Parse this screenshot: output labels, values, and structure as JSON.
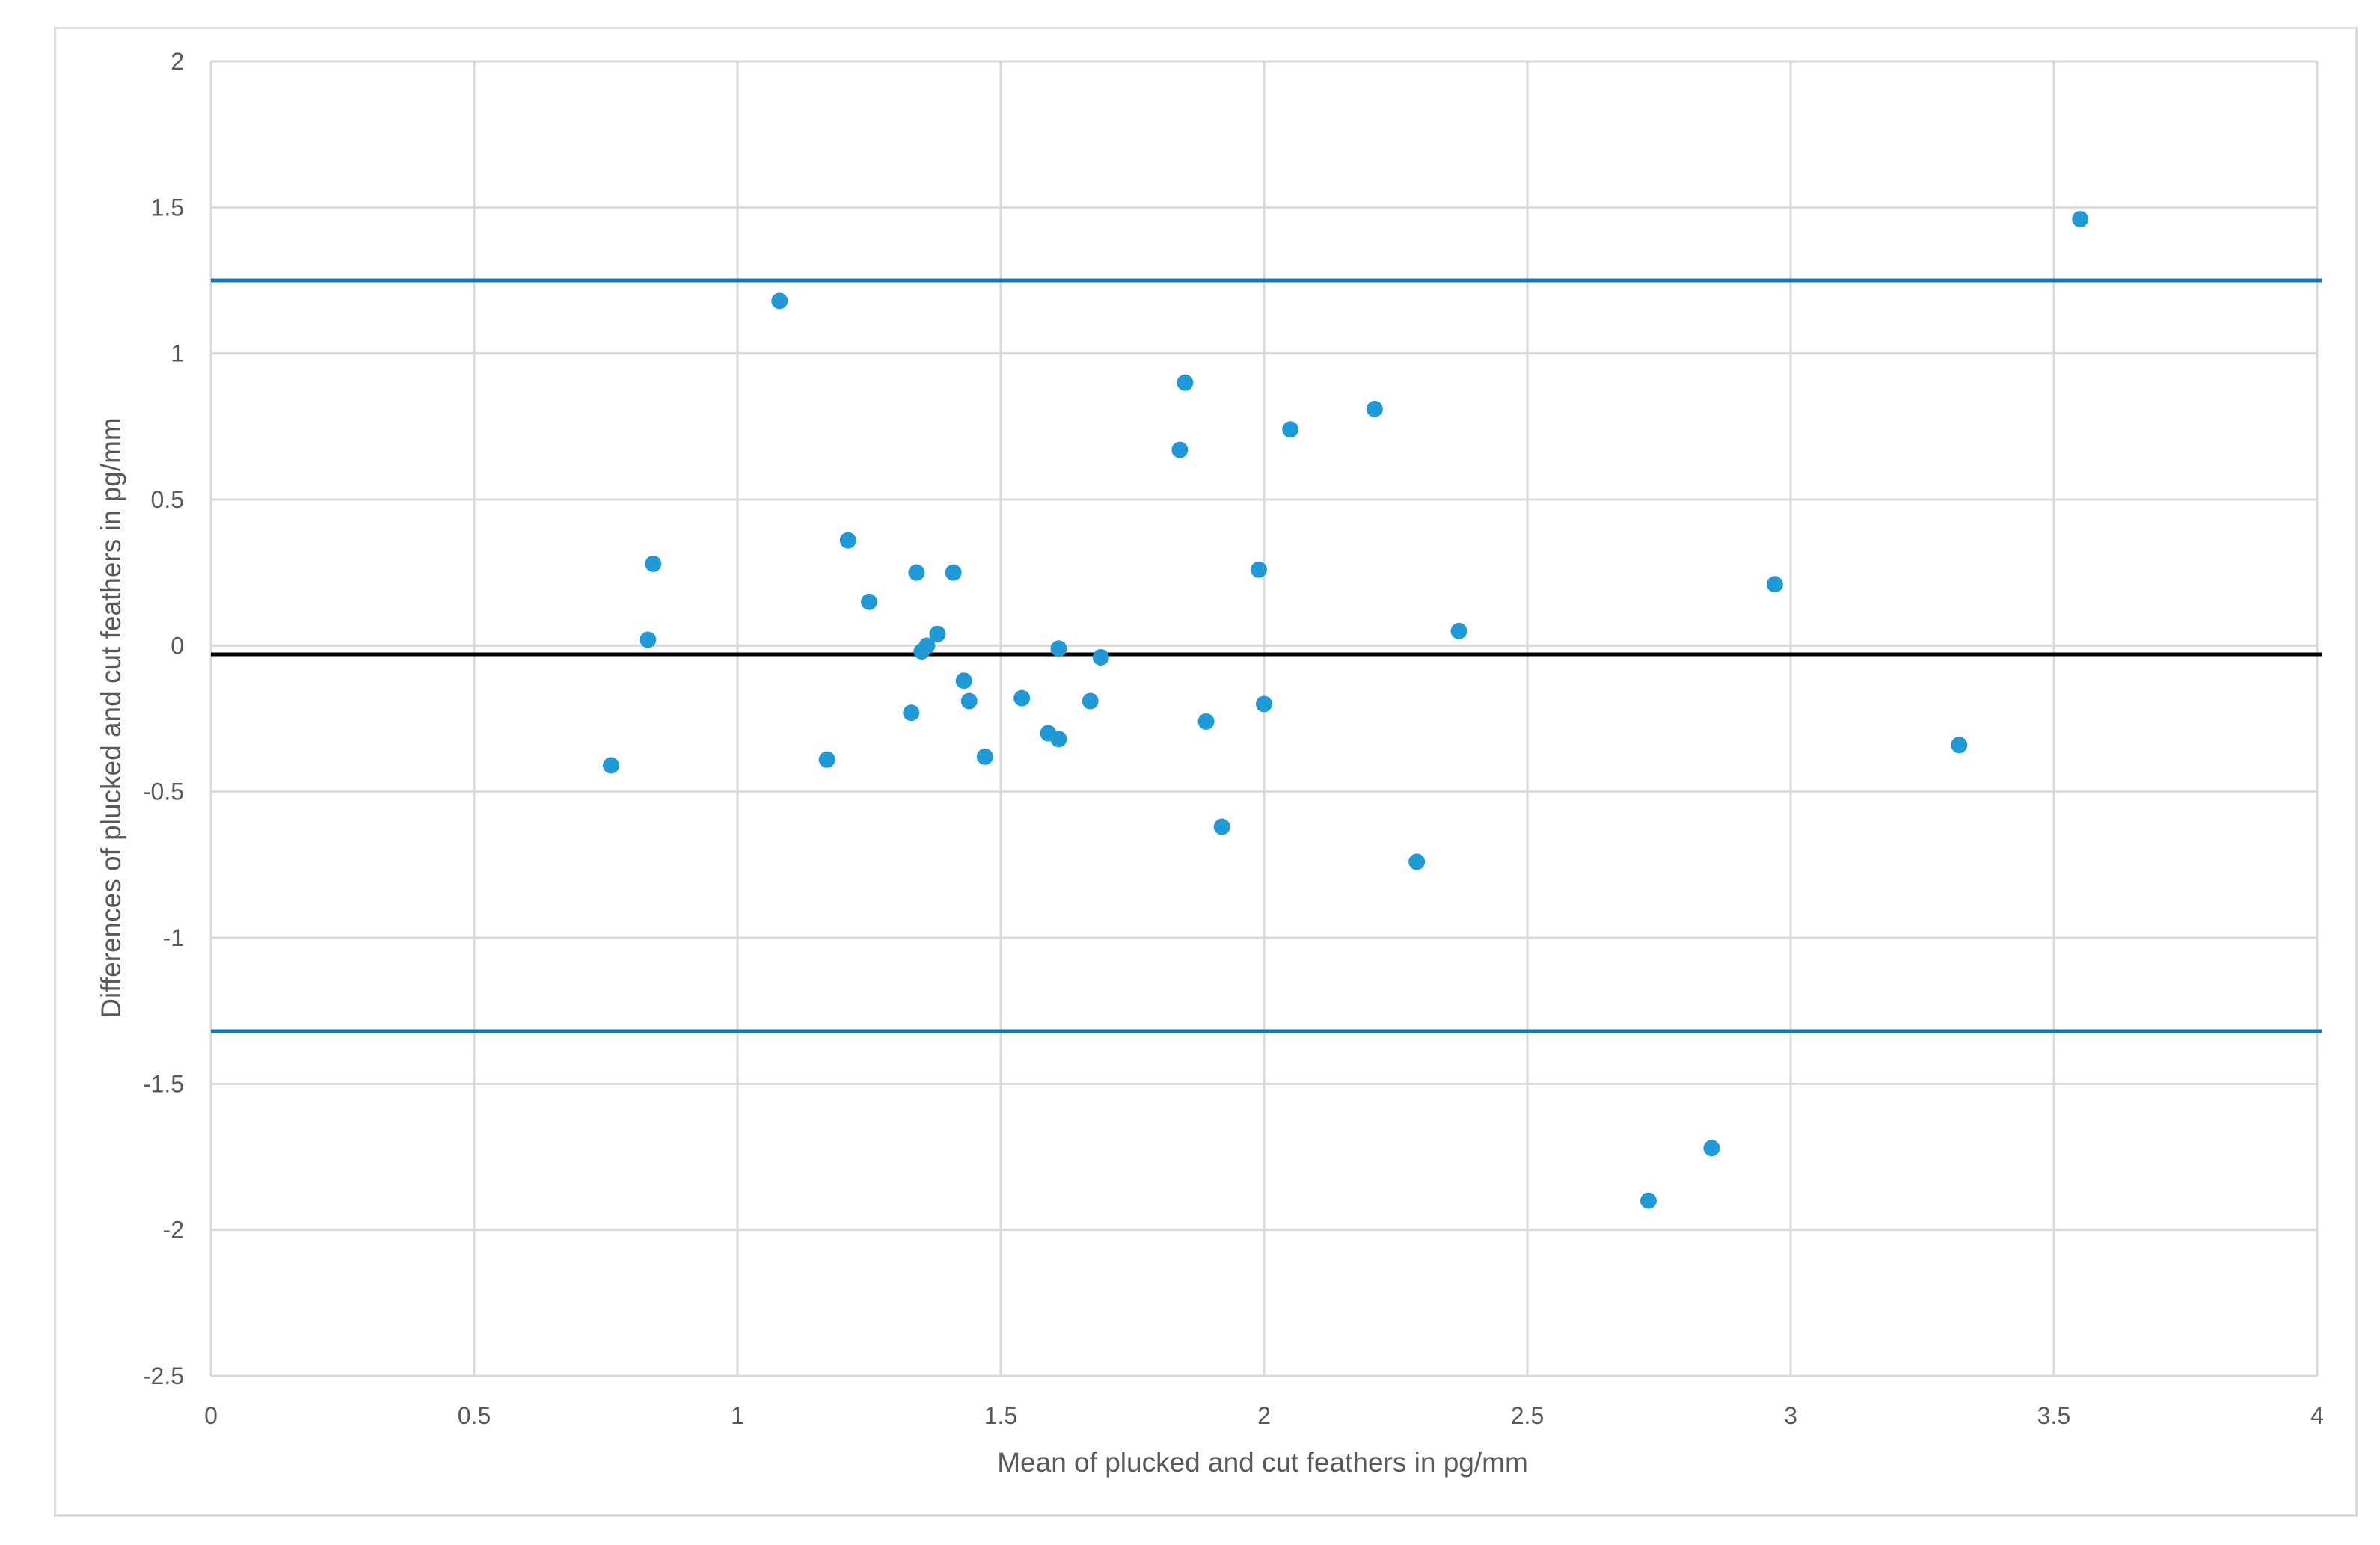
{
  "chart_data": {
    "type": "scatter",
    "title": "",
    "xlabel": "Mean of plucked and cut feathers in pg/mm",
    "ylabel": "Differences of plucked and cut feathers in pg/mm",
    "xlim": [
      0,
      4
    ],
    "ylim": [
      -2.5,
      2
    ],
    "x_ticks": [
      "0",
      "0.5",
      "1",
      "1.5",
      "2",
      "2.5",
      "3",
      "3.5",
      "4"
    ],
    "y_ticks": [
      "2",
      "1.5",
      "1",
      "0.5",
      "0",
      "-0.5",
      "-1",
      "-1.5",
      "-2",
      "-2.5"
    ],
    "grid": true,
    "legend": "none",
    "colors": {
      "points": "#1f9ad6",
      "limits": "#1777bb",
      "mean": "#000000",
      "grid": "#d9d9d9"
    },
    "reference_lines": [
      {
        "role": "upper-limit",
        "y": 1.25
      },
      {
        "role": "mean-difference",
        "y": -0.03
      },
      {
        "role": "lower-limit",
        "y": -1.32
      }
    ],
    "points": [
      [
        0.76,
        -0.41
      ],
      [
        0.83,
        0.02
      ],
      [
        0.84,
        0.28
      ],
      [
        1.08,
        1.18
      ],
      [
        1.17,
        -0.39
      ],
      [
        1.21,
        0.36
      ],
      [
        1.25,
        0.15
      ],
      [
        1.33,
        -0.23
      ],
      [
        1.34,
        0.25
      ],
      [
        1.35,
        -0.02
      ],
      [
        1.36,
        0.0
      ],
      [
        1.38,
        0.04
      ],
      [
        1.41,
        0.25
      ],
      [
        1.43,
        -0.12
      ],
      [
        1.44,
        -0.19
      ],
      [
        1.47,
        -0.38
      ],
      [
        1.54,
        -0.18
      ],
      [
        1.59,
        -0.3
      ],
      [
        1.61,
        -0.01
      ],
      [
        1.61,
        -0.32
      ],
      [
        1.67,
        -0.19
      ],
      [
        1.69,
        -0.04
      ],
      [
        1.84,
        0.67
      ],
      [
        1.85,
        0.9
      ],
      [
        1.89,
        -0.26
      ],
      [
        1.92,
        -0.62
      ],
      [
        1.99,
        0.26
      ],
      [
        2.0,
        -0.2
      ],
      [
        2.05,
        0.74
      ],
      [
        2.21,
        0.81
      ],
      [
        2.29,
        -0.74
      ],
      [
        2.37,
        0.05
      ],
      [
        2.73,
        -1.9
      ],
      [
        2.85,
        -1.72
      ],
      [
        2.97,
        0.21
      ],
      [
        3.32,
        -0.34
      ],
      [
        3.55,
        1.46
      ]
    ]
  }
}
